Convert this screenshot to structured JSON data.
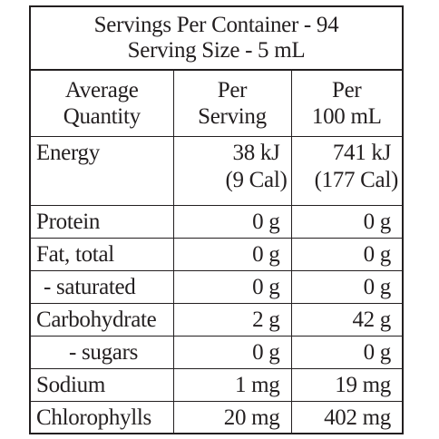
{
  "header": {
    "servings_per_container": "Servings Per Container - 94",
    "serving_size": "Serving Size - 5 mL"
  },
  "columns": {
    "quantity_line1": "Average",
    "quantity_line2": "Quantity",
    "per_serving_line1": "Per",
    "per_serving_line2": "Serving",
    "per_100_line1": "Per",
    "per_100_line2": "100 mL"
  },
  "energy": {
    "label": "Energy",
    "per_serving_kj": "38 kJ",
    "per_serving_cal": "(9 Cal)",
    "per_100_kj": "741 kJ",
    "per_100_cal": "(177 Cal)"
  },
  "rows": [
    {
      "label": "Protein",
      "per_serving": "0 g",
      "per_100": "0 g"
    },
    {
      "label": "Fat, total",
      "per_serving": "0 g",
      "per_100": "0 g"
    },
    {
      "label": "- saturated",
      "per_serving": "0 g",
      "per_100": "0 g"
    },
    {
      "label": "Carbohydrate",
      "per_serving": "2 g",
      "per_100": "42 g"
    },
    {
      "label": "- sugars",
      "per_serving": "0 g",
      "per_100": "0 g"
    },
    {
      "label": "Sodium",
      "per_serving": "1 mg",
      "per_100": "19 mg"
    },
    {
      "label": "Chlorophylls",
      "per_serving": "20 mg",
      "per_100": "402 mg"
    }
  ]
}
